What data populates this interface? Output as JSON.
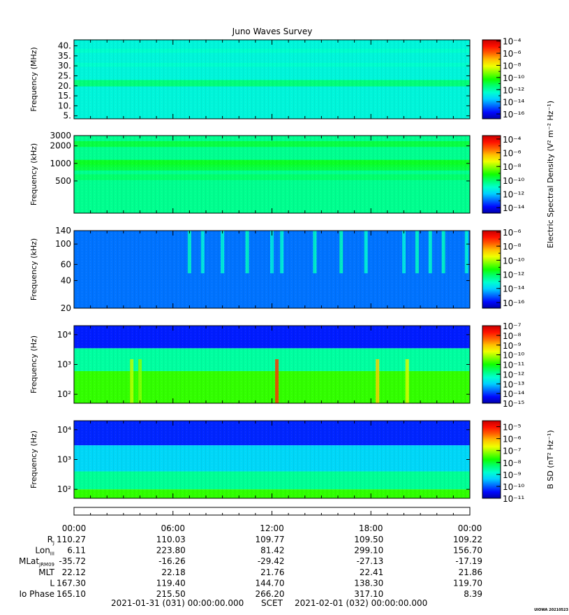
{
  "chart_data": {
    "type": "heatmap",
    "title": "Juno Waves Survey",
    "panels": [
      {
        "id": "mhz",
        "ylabel": "Frequency (MHz)",
        "yscale": "linear",
        "ylim": [
          3.5,
          43
        ],
        "yticks": [
          5,
          10,
          15,
          20,
          25,
          30,
          35,
          40
        ],
        "yticklabels": [
          "5.",
          "10.",
          "15.",
          "20.",
          "25.",
          "30.",
          "35.",
          "40."
        ],
        "colorbar": {
          "exponents": [
            -16,
            -14,
            -12,
            -10,
            -8,
            -6,
            -4
          ],
          "range": [
            -16.8,
            -3.8
          ]
        },
        "background_level": -12.7,
        "bands": [
          {
            "y": 21.3,
            "width": 1.6,
            "level": -11.3
          },
          {
            "y": 30.5,
            "width": 1.0,
            "level": -12.4
          },
          {
            "y": 37.5,
            "width": 1.0,
            "level": -12.4
          }
        ]
      },
      {
        "id": "khz",
        "ylabel": "Frequency (kHz)",
        "yscale": "log",
        "ylim": [
          140,
          3000
        ],
        "yticks": [
          500,
          1000,
          2000,
          3000
        ],
        "yticklabels": [
          "500",
          "1000",
          "2000",
          "3000"
        ],
        "colorbar": {
          "exponents": [
            -14,
            -12,
            -10,
            -8,
            -6,
            -4
          ],
          "range": [
            -14.8,
            -3.5
          ]
        },
        "background_level": -10.4,
        "bands": [
          {
            "y": 2150,
            "width": 0.05,
            "level": -9.6
          },
          {
            "y": 1000,
            "width": 0.06,
            "level": -9.3
          },
          {
            "y": 850,
            "width": 0.05,
            "level": -9.6
          },
          {
            "y": 580,
            "width": 0.05,
            "level": -10.0
          }
        ]
      },
      {
        "id": "khz-low",
        "ylabel": "Frequency (kHz)",
        "yscale": "log",
        "ylim": [
          20,
          140
        ],
        "yticks": [
          20,
          40,
          60,
          100,
          140
        ],
        "yticklabels": [
          "20",
          "40",
          "60",
          "100",
          "140"
        ],
        "colorbar": {
          "exponents": [
            -16,
            -14,
            -12,
            -10,
            -8,
            -6
          ],
          "range": [
            -16.8,
            -5.8
          ]
        },
        "background_level": -14.9,
        "bursts": [
          {
            "t": 7.0,
            "level": -13.0
          },
          {
            "t": 7.8,
            "level": -13.3
          },
          {
            "t": 9.0,
            "level": -13.2
          },
          {
            "t": 10.5,
            "level": -13.0
          },
          {
            "t": 12.0,
            "level": -13.4
          },
          {
            "t": 12.6,
            "level": -13.2
          },
          {
            "t": 14.6,
            "level": -13.0
          },
          {
            "t": 16.2,
            "level": -12.9
          },
          {
            "t": 17.7,
            "level": -13.2
          },
          {
            "t": 20.0,
            "level": -13.4
          },
          {
            "t": 20.8,
            "level": -13.0
          },
          {
            "t": 21.6,
            "level": -13.1
          },
          {
            "t": 22.4,
            "level": -13.0
          },
          {
            "t": 23.8,
            "level": -13.2
          }
        ]
      },
      {
        "id": "hz-e",
        "ylabel": "Frequency (Hz)",
        "yscale": "log",
        "ylim": [
          50,
          20000
        ],
        "yticks": [
          100,
          1000,
          10000
        ],
        "yticklabels": [
          "10²",
          "10³",
          "10⁴"
        ],
        "colorbar": {
          "exponents": [
            -15,
            -14,
            -13,
            -12,
            -11,
            -10,
            -9,
            -8,
            -7
          ],
          "range": [
            -15.0,
            -7.0
          ]
        },
        "layers": [
          {
            "below": 600,
            "level": -10.8
          },
          {
            "below": 3500,
            "level": -12.0
          },
          {
            "below": 20000,
            "level": -14.2
          }
        ],
        "bursts": [
          {
            "t": 12.3,
            "level": -8.0
          },
          {
            "t": 18.4,
            "level": -9.2
          },
          {
            "t": 20.2,
            "level": -9.8
          },
          {
            "t": 3.5,
            "level": -10.0
          },
          {
            "t": 4.0,
            "level": -10.3
          }
        ]
      },
      {
        "id": "hz-b",
        "ylabel": "Frequency (Hz)",
        "yscale": "log",
        "ylim": [
          50,
          20000
        ],
        "yticks": [
          100,
          1000,
          10000
        ],
        "yticklabels": [
          "10²",
          "10³",
          "10⁴"
        ],
        "colorbar": {
          "exponents": [
            -11,
            -10,
            -9,
            -8,
            -7,
            -6,
            -5
          ],
          "range": [
            -11.0,
            -4.5
          ]
        },
        "layers": [
          {
            "below": 100,
            "level": -7.6
          },
          {
            "below": 400,
            "level": -8.5
          },
          {
            "below": 3000,
            "level": -9.3
          },
          {
            "below": 20000,
            "level": -10.3
          }
        ]
      }
    ],
    "colorbar_labels": [
      {
        "text": "Electric Spectral Density (V² m⁻² Hz⁻¹)",
        "panels": [
          "khz"
        ]
      },
      {
        "text": "B SD (nT² Hz⁻¹)",
        "panels": [
          "hz-b"
        ]
      }
    ],
    "x": {
      "unit": "hours",
      "xlim": [
        0,
        24
      ],
      "ticks": [
        0,
        6,
        12,
        18,
        24
      ],
      "ticklabels": [
        "00:00",
        "06:00",
        "12:00",
        "18:00",
        "00:00"
      ]
    },
    "ephemeris": {
      "rows": [
        {
          "label": "R",
          "sub": "J",
          "values": [
            "110.27",
            "110.03",
            "109.77",
            "109.50",
            "109.22"
          ]
        },
        {
          "label": "Lon",
          "sub": "III",
          "values": [
            "6.11",
            "223.80",
            "81.42",
            "299.10",
            "156.70"
          ]
        },
        {
          "label": "MLat",
          "sub": "JRM09",
          "values": [
            "-35.72",
            "-16.26",
            "-29.42",
            "-27.13",
            "-17.19"
          ]
        },
        {
          "label": "MLT",
          "sub": "",
          "values": [
            "22.12",
            "22.18",
            "21.76",
            "22.41",
            "21.86"
          ]
        },
        {
          "label": "L",
          "sub": "",
          "values": [
            "167.30",
            "119.40",
            "144.70",
            "138.30",
            "119.70"
          ]
        },
        {
          "label": "Io Phase",
          "sub": "",
          "values": [
            "165.10",
            "215.50",
            "266.20",
            "317.10",
            "8.39"
          ]
        }
      ]
    },
    "footer": {
      "start": "2021-01-31 (031) 00:00:00.000",
      "mid": "SCET",
      "end": "2021-02-01 (032) 00:00:00.000",
      "credit": "UIOWA 20210523"
    }
  }
}
